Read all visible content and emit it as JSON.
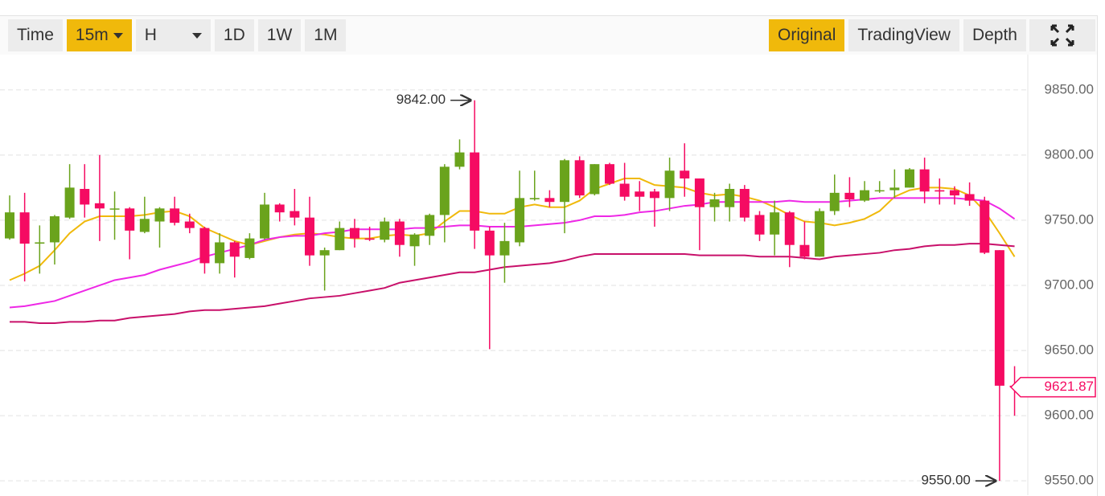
{
  "toolbar": {
    "left": [
      {
        "label": "Time"
      },
      {
        "label": "15m",
        "selected": true,
        "dropdown": true
      },
      {
        "label": "H",
        "dropdown": true
      },
      {
        "label": "1D"
      },
      {
        "label": "1W"
      },
      {
        "label": "1M"
      }
    ],
    "right": [
      {
        "label": "Original",
        "selected": true
      },
      {
        "label": "TradingView"
      },
      {
        "label": "Depth"
      }
    ]
  },
  "chart_data": {
    "type": "candlestick",
    "open": [
      9736,
      9756,
      9732,
      9733,
      9752,
      9774,
      9763,
      9759,
      9759,
      9741,
      9749,
      9759,
      9749,
      9744,
      9717,
      9733,
      9721,
      9736,
      9762,
      9757,
      9752,
      9723,
      9727,
      9744,
      9736,
      9735,
      9749,
      9730,
      9738,
      9754,
      9791,
      9802,
      9742,
      9723,
      9733,
      9766,
      9767,
      9764,
      9796,
      9770,
      9793,
      9778,
      9772,
      9772,
      9767,
      9788,
      9782,
      9760,
      9760,
      9774,
      9754,
      9739,
      9756,
      9731,
      9722,
      9757,
      9771,
      9765,
      9773,
      9773,
      9775,
      9789,
      9773,
      9773,
      9770,
      9765,
      9727,
      9623
    ],
    "high": [
      9769,
      9771,
      9746,
      9754,
      9793,
      9793,
      9800,
      9772,
      9760,
      9768,
      9760,
      9768,
      9755,
      9745,
      9740,
      9734,
      9740,
      9771,
      9763,
      9774,
      9768,
      9729,
      9749,
      9751,
      9745,
      9752,
      9751,
      9740,
      9755,
      9793,
      9812,
      9842,
      9745,
      9748,
      9788,
      9788,
      9773,
      9797,
      9799,
      9793,
      9794,
      9794,
      9780,
      9774,
      9798,
      9809,
      9782,
      9771,
      9778,
      9777,
      9757,
      9765,
      9757,
      9749,
      9759,
      9785,
      9783,
      9780,
      9780,
      9789,
      9790,
      9798,
      9782,
      9776,
      9779,
      9768,
      9727,
      9638
    ],
    "low": [
      9735,
      9703,
      9709,
      9716,
      9751,
      9752,
      9734,
      9735,
      9720,
      9740,
      9729,
      9746,
      9740,
      9709,
      9709,
      9706,
      9720,
      9735,
      9749,
      9746,
      9715,
      9696,
      9727,
      9729,
      9734,
      9733,
      9722,
      9715,
      9731,
      9733,
      9789,
      9728,
      9651,
      9702,
      9730,
      9765,
      9760,
      9740,
      9767,
      9769,
      9777,
      9765,
      9757,
      9745,
      9757,
      9768,
      9727,
      9749,
      9749,
      9749,
      9734,
      9723,
      9714,
      9720,
      9722,
      9754,
      9760,
      9764,
      9771,
      9767,
      9775,
      9763,
      9762,
      9762,
      9761,
      9724,
      9550,
      9600
    ],
    "close": [
      9756,
      9732,
      9733,
      9753,
      9775,
      9762,
      9759,
      9759,
      9742,
      9751,
      9759,
      9748,
      9744,
      9717,
      9733,
      9722,
      9736,
      9762,
      9756,
      9752,
      9723,
      9727,
      9744,
      9736,
      9735,
      9749,
      9731,
      9739,
      9754,
      9791,
      9802,
      9742,
      9723,
      9734,
      9767,
      9767,
      9764,
      9796,
      9769,
      9793,
      9778,
      9768,
      9768,
      9767,
      9788,
      9782,
      9760,
      9766,
      9774,
      9752,
      9739,
      9756,
      9731,
      9722,
      9757,
      9771,
      9766,
      9773,
      9773,
      9775,
      9789,
      9772,
      9772,
      9769,
      9765,
      9725,
      9623,
      9621.87
    ],
    "up_color": "#6aa31c",
    "down_color": "#f50b62",
    "series": [
      {
        "color": "#f0b90b",
        "values": [
          9704,
          9709,
          9715,
          9727,
          9740,
          9749,
          9753,
          9753,
          9753,
          9754,
          9756,
          9757,
          9753,
          9744,
          9739,
          9734,
          9731,
          9734,
          9737,
          9739,
          9740,
          9739,
          9737,
          9736,
          9736,
          9738,
          9739,
          9738,
          9740,
          9749,
          9757,
          9757,
          9755,
          9755,
          9760,
          9762,
          9760,
          9760,
          9765,
          9774,
          9778,
          9782,
          9782,
          9777,
          9776,
          9775,
          9771,
          9769,
          9770,
          9768,
          9765,
          9760,
          9754,
          9749,
          9748,
          9746,
          9748,
          9751,
          9757,
          9768,
          9773,
          9775,
          9775,
          9774,
          9769,
          9757,
          9740,
          9722
        ]
      },
      {
        "color": "#ee28e6",
        "values": [
          9683,
          9684,
          9686,
          9688,
          9692,
          9696,
          9700,
          9704,
          9706,
          9708,
          9712,
          9715,
          9718,
          9722,
          9725,
          9728,
          9731,
          9735,
          9737,
          9738,
          9738,
          9740,
          9741,
          9743,
          9743,
          9743,
          9743,
          9744,
          9744,
          9745,
          9746,
          9746,
          9745,
          9745,
          9745,
          9746,
          9747,
          9748,
          9750,
          9753,
          9753,
          9754,
          9756,
          9757,
          9759,
          9761,
          9762,
          9764,
          9764,
          9764,
          9764,
          9764,
          9765,
          9764,
          9764,
          9764,
          9765,
          9766,
          9767,
          9767,
          9767,
          9767,
          9767,
          9767,
          9766,
          9765,
          9759,
          9751
        ]
      },
      {
        "color": "#c8106a",
        "values": [
          9672,
          9672,
          9671,
          9671,
          9672,
          9672,
          9673,
          9673,
          9675,
          9676,
          9677,
          9678,
          9680,
          9681,
          9681,
          9682,
          9683,
          9684,
          9686,
          9688,
          9690,
          9691,
          9692,
          9694,
          9696,
          9698,
          9702,
          9704,
          9706,
          9708,
          9710,
          9710,
          9712,
          9714,
          9715,
          9716,
          9717,
          9719,
          9722,
          9724,
          9724,
          9724,
          9724,
          9724,
          9724,
          9724,
          9723,
          9723,
          9723,
          9723,
          9722,
          9722,
          9722,
          9721,
          9720,
          9722,
          9723,
          9724,
          9725,
          9727,
          9728,
          9730,
          9731,
          9731,
          9732,
          9732,
          9731,
          9730
        ]
      }
    ],
    "annotations": [
      {
        "value": 9842,
        "label": "9842.00"
      },
      {
        "value": 9550,
        "label": "9550.00"
      }
    ],
    "last_price": {
      "value": 9621.87,
      "label": "9621.87"
    },
    "ylim": [
      9539,
      9877
    ],
    "yticks": [
      {
        "value": 9550,
        "label": "9550.00"
      },
      {
        "value": 9600,
        "label": "9600.00"
      },
      {
        "value": 9650,
        "label": "9650.00"
      },
      {
        "value": 9700,
        "label": "9700.00"
      },
      {
        "value": 9750,
        "label": "9750.00"
      },
      {
        "value": 9800,
        "label": "9800.00"
      },
      {
        "value": 9850,
        "label": "9850.00"
      }
    ],
    "grid": true
  }
}
